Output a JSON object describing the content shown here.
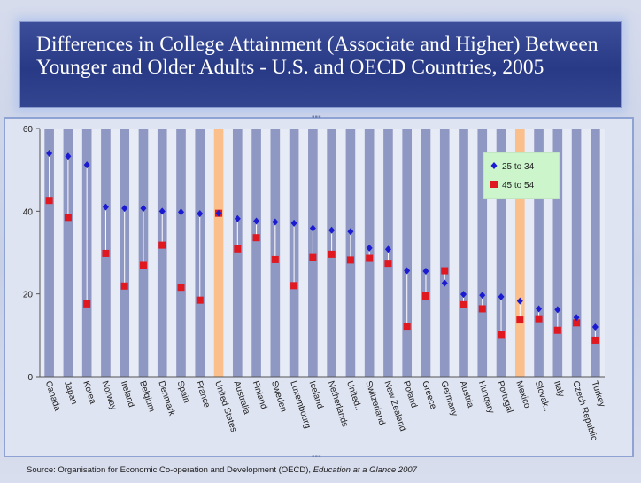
{
  "title": "Differences in College Attainment (Associate and Higher) Between Younger and Older Adults - U.S. and OECD Countries, 2005",
  "source": {
    "prefix": "Source:  Organisation for Economic Co-operation and Development (OECD), ",
    "publication": "Education at a Glance 2007"
  },
  "colors": {
    "band": "#8f97c3",
    "highlight_band": "#fbbf8c",
    "series_young": "#1a1ad0",
    "series_old": "#e01820",
    "legend_bg": "#ccf5cc"
  },
  "chart_data": {
    "type": "scatter",
    "title": "",
    "xlabel": "",
    "ylabel": "",
    "ylim": [
      0,
      60
    ],
    "yticks": [
      0,
      20,
      40,
      60
    ],
    "grid": false,
    "legend_position": "top-right",
    "highlighted_categories": [
      "United States",
      "Mexico"
    ],
    "categories": [
      "Canada",
      "Japan",
      "Korea",
      "Norway",
      "Ireland",
      "Belgium",
      "Denmark",
      "Spain",
      "France",
      "United States",
      "Australia",
      "Finland",
      "Sweden",
      "Luxembourg",
      "Iceland",
      "Netherlands",
      "United..",
      "Switzerland",
      "New Zealand",
      "Poland",
      "Greece",
      "Germany",
      "Austria",
      "Hungary",
      "Portugal",
      "Mexico",
      "Slovak..",
      "Italy",
      "Czech Republic",
      "Turkey"
    ],
    "series": [
      {
        "name": "25 to 34",
        "marker": "diamond",
        "values": [
          54,
          53.3,
          51.2,
          41,
          40.7,
          40.7,
          40,
          39.8,
          39.4,
          39.5,
          38.2,
          37.6,
          37.4,
          37.1,
          35.9,
          35.4,
          35.1,
          31.1,
          30.8,
          25.6,
          25.5,
          22.6,
          19.9,
          19.7,
          19.3,
          18.3,
          16.4,
          16.2,
          14.3,
          12
        ]
      },
      {
        "name": "45 to 54",
        "marker": "square",
        "values": [
          42.6,
          38.5,
          17.6,
          29.8,
          21.9,
          26.9,
          31.8,
          21.6,
          18.5,
          39.5,
          30.9,
          33.6,
          28.3,
          22,
          28.8,
          29.6,
          28.2,
          28.6,
          27.4,
          12.2,
          19.5,
          25.6,
          17.4,
          16.4,
          10.2,
          13.7,
          14,
          11.2,
          13,
          8.8
        ]
      }
    ]
  }
}
